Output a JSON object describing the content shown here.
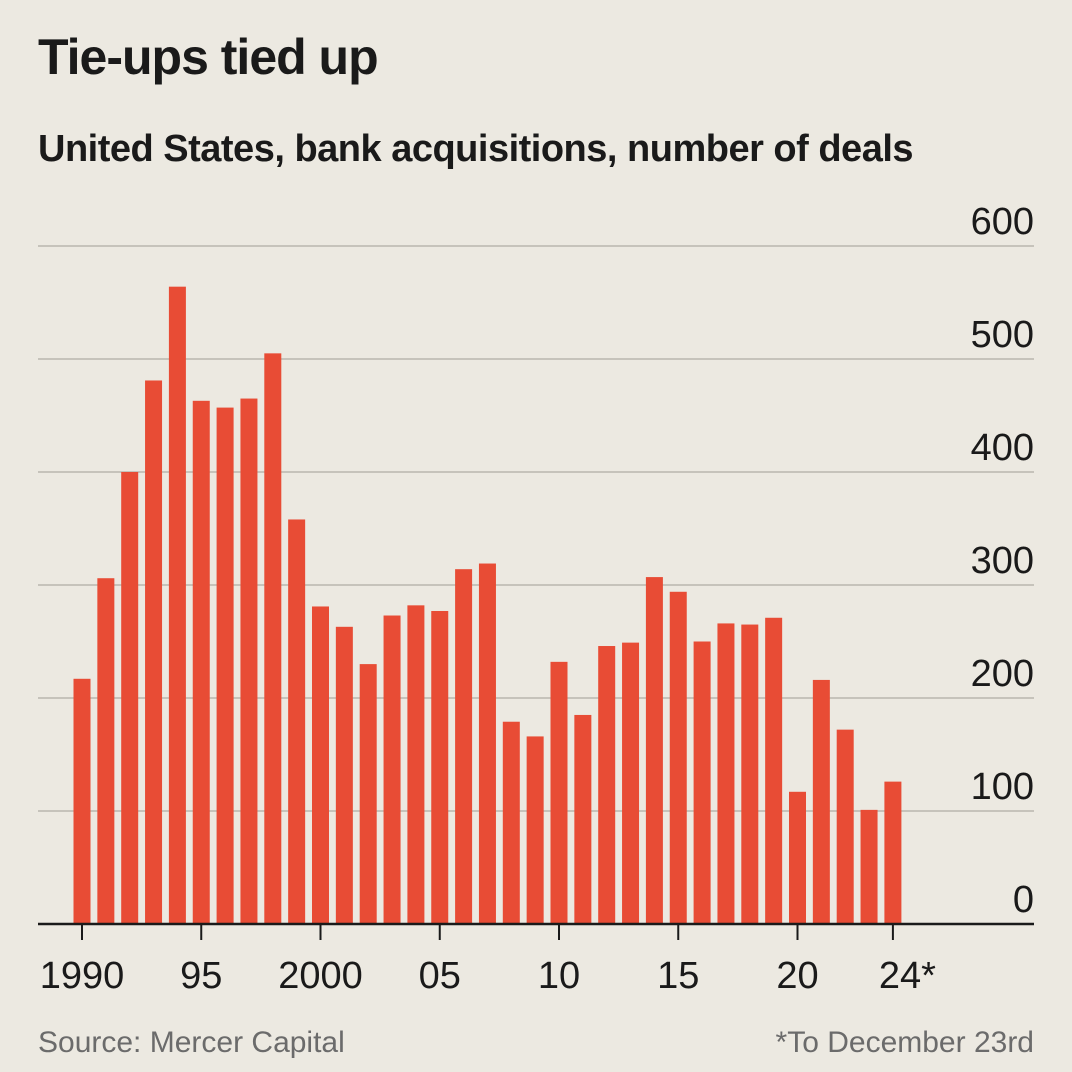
{
  "chart_data": {
    "type": "bar",
    "title": "Tie-ups tied up",
    "subtitle": "United States, bank acquisitions, number of deals",
    "xlabel": "",
    "ylabel": "number of deals",
    "ylim": [
      0,
      600
    ],
    "yticks": [
      0,
      100,
      200,
      300,
      400,
      500,
      600
    ],
    "grid": true,
    "categories": [
      "1990",
      "1991",
      "1992",
      "1993",
      "1994",
      "1995",
      "1996",
      "1997",
      "1998",
      "1999",
      "2000",
      "2001",
      "2002",
      "2003",
      "2004",
      "2005",
      "2006",
      "2007",
      "2008",
      "2009",
      "2010",
      "2011",
      "2012",
      "2013",
      "2014",
      "2015",
      "2016",
      "2017",
      "2018",
      "2019",
      "2020",
      "2021",
      "2022",
      "2023",
      "2024"
    ],
    "values": [
      217,
      306,
      400,
      481,
      564,
      463,
      457,
      465,
      505,
      358,
      281,
      263,
      230,
      273,
      282,
      277,
      314,
      319,
      179,
      166,
      232,
      185,
      246,
      249,
      307,
      294,
      250,
      266,
      265,
      271,
      117,
      216,
      172,
      101,
      126
    ],
    "x_tick_labels": [
      {
        "label": "1990",
        "index": 0
      },
      {
        "label": "95",
        "index": 5
      },
      {
        "label": "2000",
        "index": 10
      },
      {
        "label": "05",
        "index": 15
      },
      {
        "label": "10",
        "index": 20
      },
      {
        "label": "15",
        "index": 25
      },
      {
        "label": "20",
        "index": 30
      },
      {
        "label": "24*",
        "index": 34
      }
    ],
    "bar_color": "#e84c35",
    "grid_color": "#c6c3bb",
    "axis_color": "#1a1a1a"
  },
  "footer": {
    "source": "Source: Mercer Capital",
    "note": "*To December 23rd"
  }
}
